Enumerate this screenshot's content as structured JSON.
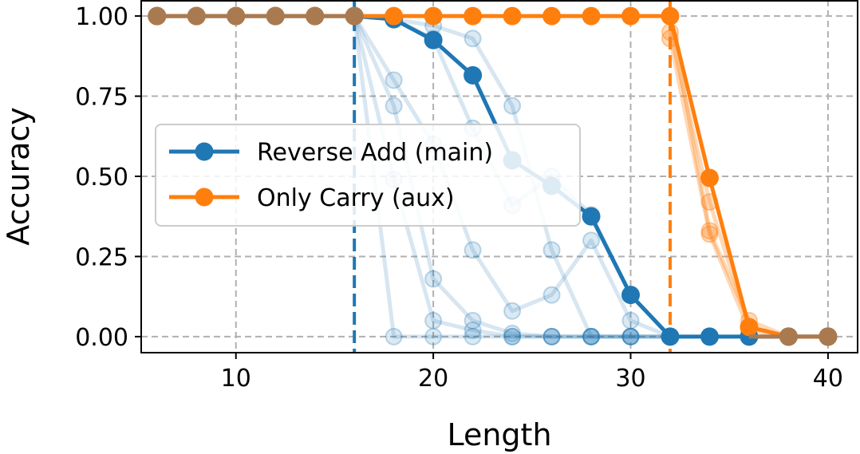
{
  "chart_data": {
    "type": "line",
    "title": "",
    "xlabel": "Length",
    "ylabel": "Accuracy",
    "xlim": [
      5.2,
      41.5
    ],
    "ylim": [
      -0.05,
      1.05
    ],
    "x_ticks": [
      10,
      20,
      30,
      40
    ],
    "y_ticks": [
      0.0,
      0.25,
      0.5,
      0.75,
      1.0
    ],
    "x_tick_labels": [
      "10",
      "20",
      "30",
      "40"
    ],
    "y_tick_labels": [
      "0.00",
      "0.25",
      "0.50",
      "0.75",
      "1.00"
    ],
    "grid": true,
    "legend_position": "center-left",
    "colors": {
      "main": "#1f77b4",
      "aux": "#ff7f0e",
      "overlap": "#a97a50"
    },
    "series": [
      {
        "name": "Reverse Add (main)",
        "color": "#1f77b4",
        "x": [
          6,
          8,
          10,
          12,
          14,
          16,
          18,
          20,
          22,
          24,
          26,
          28,
          30,
          32,
          34,
          36,
          38,
          40
        ],
        "y": [
          1.0,
          1.0,
          1.0,
          1.0,
          1.0,
          1.0,
          0.99,
          0.925,
          0.815,
          0.55,
          0.47,
          0.375,
          0.13,
          0.0,
          0.0,
          0.0,
          0.0,
          0.0
        ]
      },
      {
        "name": "Only Carry (aux)",
        "color": "#ff7f0e",
        "x": [
          6,
          8,
          10,
          12,
          14,
          16,
          18,
          20,
          22,
          24,
          26,
          28,
          30,
          32,
          34,
          36,
          38,
          40
        ],
        "y": [
          1.0,
          1.0,
          1.0,
          1.0,
          1.0,
          1.0,
          1.0,
          1.0,
          1.0,
          1.0,
          1.0,
          1.0,
          1.0,
          1.0,
          0.495,
          0.03,
          0.0,
          0.0
        ]
      }
    ],
    "faded_runs_main": [
      {
        "x": [
          16,
          18,
          20,
          22,
          24,
          26,
          28,
          30,
          32
        ],
        "y": [
          1.0,
          0.8,
          0.6,
          0.27,
          0.08,
          0.13,
          0.3,
          0.05,
          0.0
        ]
      },
      {
        "x": [
          16,
          18,
          20,
          22,
          24,
          26,
          28,
          30,
          32
        ],
        "y": [
          1.0,
          0.72,
          0.18,
          0.05,
          0.01,
          0.0,
          0.0,
          0.0,
          0.0
        ]
      },
      {
        "x": [
          16,
          18,
          20,
          22,
          24,
          26,
          28,
          30,
          32
        ],
        "y": [
          1.0,
          0.49,
          0.05,
          0.02,
          0.0,
          0.0,
          0.0,
          0.0,
          0.0
        ]
      },
      {
        "x": [
          16,
          18,
          20,
          22,
          24,
          26,
          28,
          30,
          32
        ],
        "y": [
          1.0,
          0.0,
          0.0,
          0.0,
          0.0,
          0.0,
          0.0,
          0.0,
          0.0
        ]
      },
      {
        "x": [
          16,
          18,
          20,
          22,
          24,
          26,
          28,
          30,
          32
        ],
        "y": [
          1.0,
          0.99,
          0.97,
          0.93,
          0.72,
          0.27,
          0.0,
          0.0,
          0.0
        ]
      },
      {
        "x": [
          16,
          18,
          20,
          22,
          24,
          26,
          28,
          30,
          32
        ],
        "y": [
          1.0,
          0.99,
          0.93,
          0.65,
          0.41,
          0.5,
          0.38,
          0.13,
          0.0
        ]
      }
    ],
    "faded_runs_aux": [
      {
        "x": [
          32,
          34,
          36,
          38
        ],
        "y": [
          1.0,
          0.33,
          0.05,
          0.0
        ]
      },
      {
        "x": [
          32,
          34,
          36,
          38
        ],
        "y": [
          0.93,
          0.32,
          0.02,
          0.0
        ]
      },
      {
        "x": [
          32,
          34,
          36,
          38
        ],
        "y": [
          0.95,
          0.42,
          0.03,
          0.0
        ]
      }
    ],
    "vlines": [
      {
        "x": 16,
        "color": "#1f77b4"
      },
      {
        "x": 32,
        "color": "#ff7f0e"
      }
    ]
  }
}
